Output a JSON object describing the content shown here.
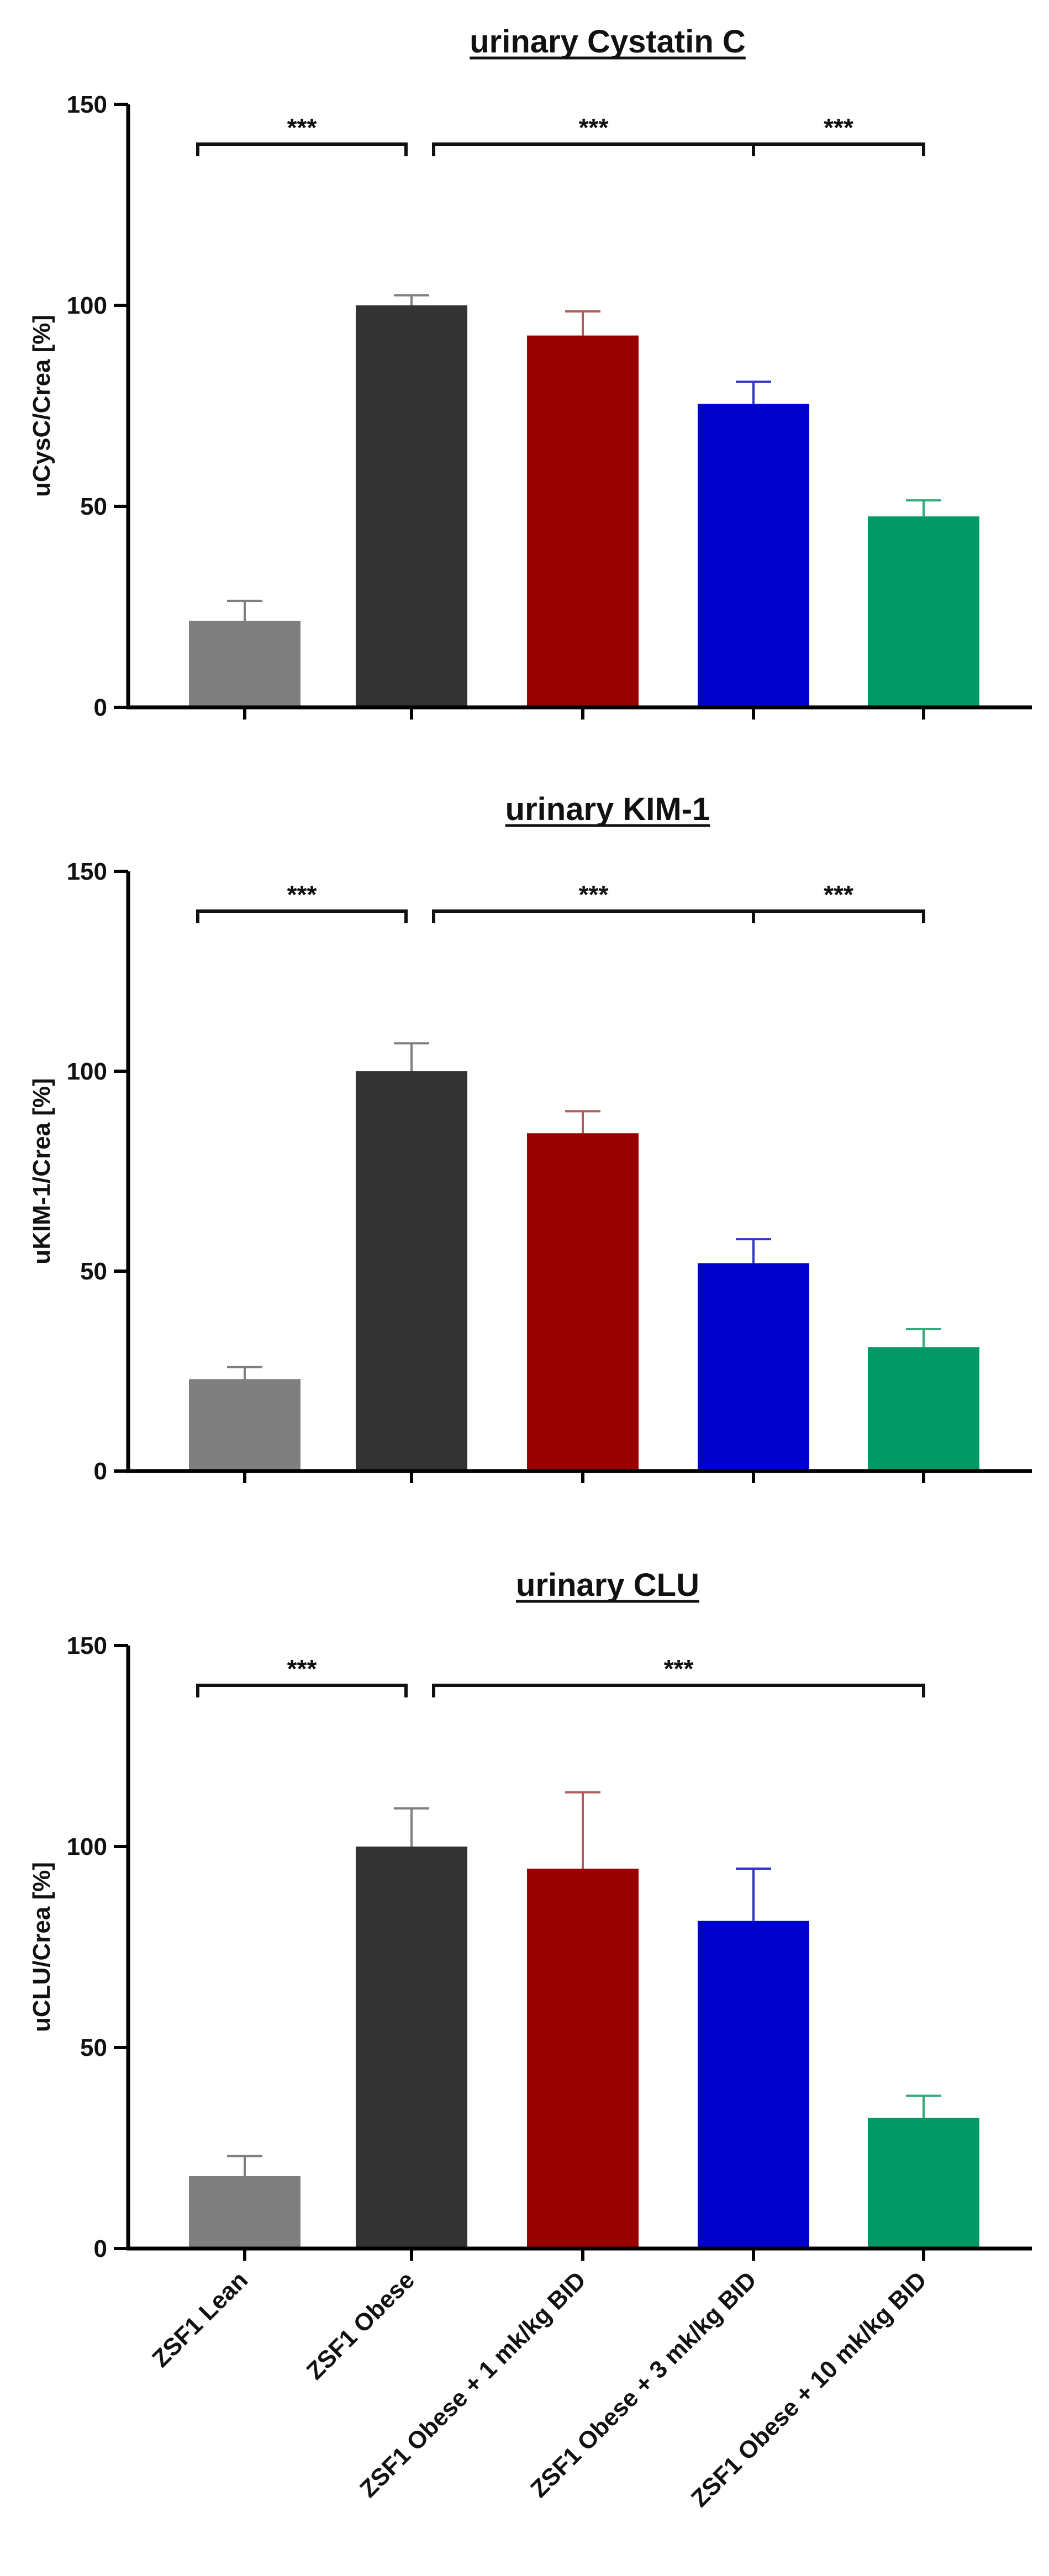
{
  "chart_data": [
    {
      "type": "bar",
      "title": "urinary Cystatin C",
      "ylabel": "uCysC/Crea [%]",
      "xlabel": "",
      "ylim": [
        0,
        150
      ],
      "yticks": [
        0,
        50,
        100,
        150
      ],
      "grid": false,
      "categories": [
        "ZSF1 Lean",
        "ZSF1 Obese",
        "ZSF1 Obese + 1 mk/kg BID",
        "ZSF1 Obese + 3 mk/kg BID",
        "ZSF1 Obese + 10 mk/kg BID"
      ],
      "values": [
        21.5,
        100,
        92.5,
        75.5,
        47.5
      ],
      "errors": [
        5,
        2.5,
        6,
        5.5,
        4
      ],
      "significance": [
        {
          "from": 0,
          "to": 1,
          "label": "***"
        },
        {
          "from": 1,
          "to": 3,
          "label": "***"
        },
        {
          "from": 3,
          "to": 4,
          "label": "***"
        }
      ]
    },
    {
      "type": "bar",
      "title": "urinary KIM-1",
      "ylabel": "uKIM-1/Crea [%]",
      "xlabel": "",
      "ylim": [
        0,
        150
      ],
      "yticks": [
        0,
        50,
        100,
        150
      ],
      "grid": false,
      "categories": [
        "ZSF1 Lean",
        "ZSF1 Obese",
        "ZSF1 Obese + 1 mk/kg BID",
        "ZSF1 Obese + 3 mk/kg BID",
        "ZSF1 Obese + 10 mk/kg BID"
      ],
      "values": [
        23,
        100,
        84.5,
        52,
        31
      ],
      "errors": [
        3,
        7,
        5.5,
        6,
        4.5
      ],
      "significance": [
        {
          "from": 0,
          "to": 1,
          "label": "***"
        },
        {
          "from": 1,
          "to": 3,
          "label": "***"
        },
        {
          "from": 3,
          "to": 4,
          "label": "***"
        }
      ]
    },
    {
      "type": "bar",
      "title": "urinary CLU",
      "ylabel": "uCLU/Crea [%]",
      "xlabel": "",
      "ylim": [
        0,
        150
      ],
      "yticks": [
        0,
        50,
        100,
        150
      ],
      "grid": false,
      "categories": [
        "ZSF1 Lean",
        "ZSF1 Obese",
        "ZSF1 Obese + 1 mk/kg BID",
        "ZSF1 Obese + 3 mk/kg BID",
        "ZSF1 Obese + 10 mk/kg BID"
      ],
      "values": [
        18,
        100,
        94.5,
        81.5,
        32.5
      ],
      "errors": [
        5,
        9.5,
        19,
        13,
        5.5
      ],
      "significance": [
        {
          "from": 0,
          "to": 1,
          "label": "***"
        },
        {
          "from": 1,
          "to": 4,
          "label": "***"
        }
      ]
    }
  ],
  "colors": {
    "bars": [
      "#7f7f7f",
      "#333333",
      "#990000",
      "#0000cc",
      "#009966"
    ],
    "error_bars": [
      "#7f7f7f",
      "#7f7f7f",
      "#b35a5a",
      "#3333cc",
      "#33aa77"
    ],
    "axis": "#000000"
  }
}
